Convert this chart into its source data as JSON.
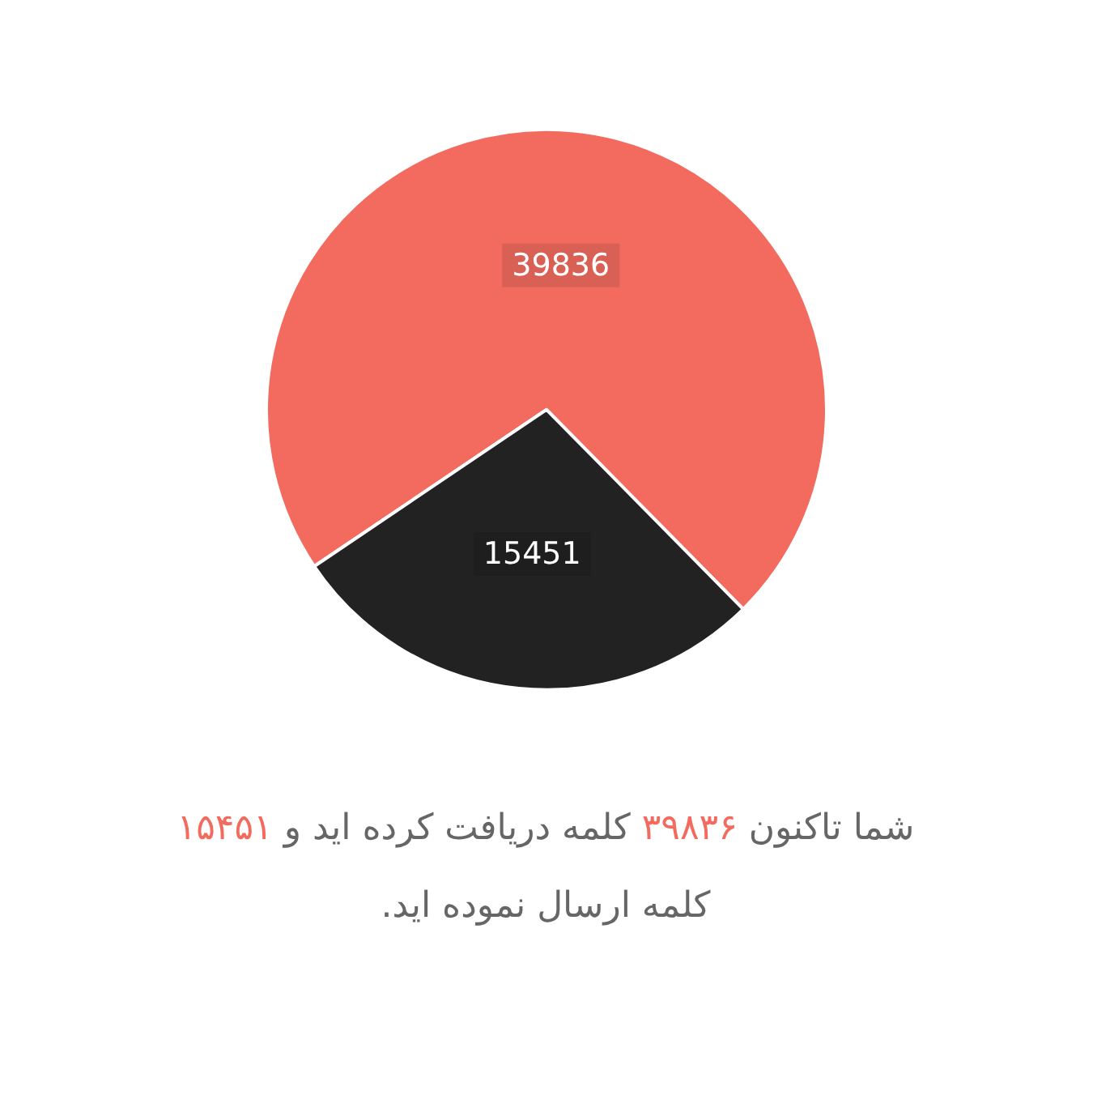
{
  "chart_data": {
    "type": "pie",
    "categories": [
      null,
      null
    ],
    "values": [
      39836,
      15451
    ],
    "colors": [
      "#f26b5e",
      "#222222"
    ],
    "data_labels": true,
    "annotations": [
      "شما تاکنون ۳۹۸۳۶ کلمه دریافت کرده اید و ۱۵۴۵۱ کلمه ارسال نموده اید."
    ]
  }
}
